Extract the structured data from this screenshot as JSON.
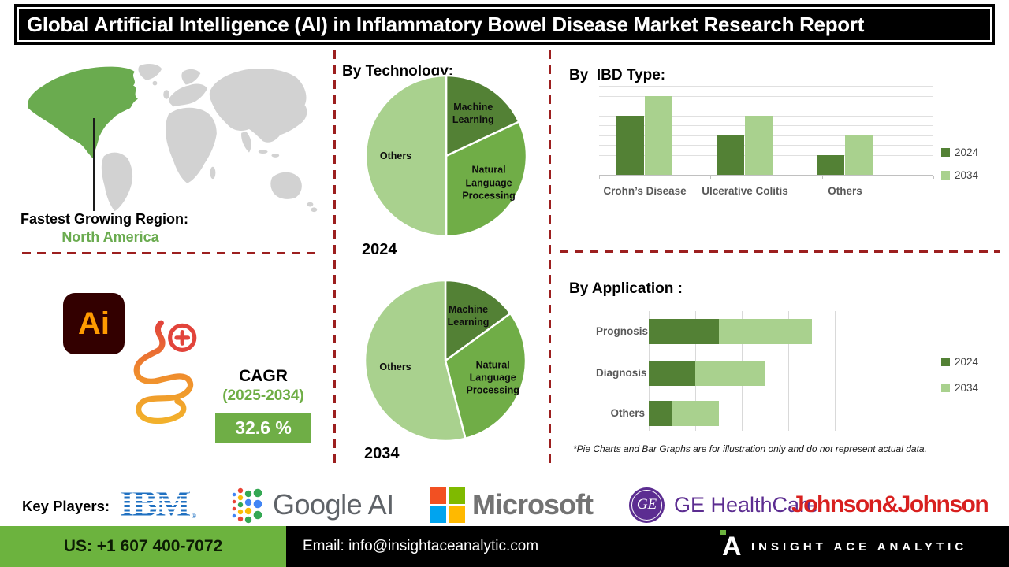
{
  "title": "Global Artificial Intelligence (AI) in Inflammatory Bowel Disease Market Research Report",
  "region": {
    "label": "Fastest Growing Region:",
    "value": "North America"
  },
  "icons": {
    "ai_badge": "Ai"
  },
  "cagr": {
    "label": "CAGR",
    "period": "(2025-2034)",
    "value": "32.6 %"
  },
  "sections": {
    "technology": {
      "heading": "By Technology:"
    },
    "ibd_type": {
      "heading": "By  IBD Type:"
    },
    "application": {
      "heading": "By Application :"
    }
  },
  "note": "*Pie Charts and Bar Graphs are for illustration only and do not represent actual data.",
  "key_players": {
    "label": "Key Players:",
    "ibm": "IBM",
    "ibm_reg": "®",
    "google": "Google AI",
    "microsoft": "Microsoft",
    "ge_monogram": "GE",
    "ge": "GE HealthCare",
    "jnj": "Johnson&Johnson"
  },
  "footer": {
    "phone": "US: +1 607 400-7072",
    "email": "Email: info@insightaceanalytic.com",
    "brand": "INSIGHT ACE ANALYTIC"
  },
  "colors": {
    "dark_green": "#538135",
    "mid_green": "#70ad47",
    "light_green": "#a9d18e",
    "map_green": "#6aab4f",
    "map_gray": "#d2d2d2",
    "divider_red": "#9c1f1f",
    "footer_green": "#6cb33e",
    "ibm_blue": "#1f70c1",
    "ge_purple": "#5c2d91",
    "jnj_red": "#d8201f"
  },
  "chart_data": [
    {
      "type": "pie",
      "title": "2024",
      "group": "By Technology",
      "labels": [
        "Machine Learning",
        "Natural Language Processing",
        "Others"
      ],
      "values": [
        18,
        32,
        50
      ],
      "colors": [
        "#538135",
        "#70ad47",
        "#a9d18e"
      ],
      "illustrative": true
    },
    {
      "type": "pie",
      "title": "2034",
      "group": "By Technology",
      "labels": [
        "Machine Learning",
        "Natural Language Processing",
        "Others"
      ],
      "values": [
        15,
        31,
        54
      ],
      "colors": [
        "#538135",
        "#70ad47",
        "#a9d18e"
      ],
      "illustrative": true
    },
    {
      "type": "bar",
      "group": "By IBD Type",
      "categories": [
        "Crohn’s Disease",
        "Ulcerative Colitis",
        "Others"
      ],
      "series": [
        {
          "name": "2024",
          "color": "#538135",
          "values": [
            6,
            4,
            2
          ]
        },
        {
          "name": "2034",
          "color": "#a9d18e",
          "values": [
            8,
            6,
            4
          ]
        }
      ],
      "ylim": [
        0,
        9
      ],
      "gridline_step": 1,
      "legend_position": "right",
      "grid": true,
      "illustrative": true
    },
    {
      "type": "bar",
      "orientation": "horizontal",
      "stacked": true,
      "group": "By Application",
      "categories": [
        "Prognosis",
        "Diagnosis",
        "Others"
      ],
      "series": [
        {
          "name": "2024",
          "color": "#538135",
          "values": [
            1.5,
            1.0,
            0.5
          ]
        },
        {
          "name": "2034",
          "color": "#a9d18e",
          "values": [
            2.0,
            1.5,
            1.0
          ]
        }
      ],
      "xlim": [
        0,
        4
      ],
      "gridline_step": 1,
      "legend_position": "right",
      "grid": true,
      "illustrative": true
    }
  ]
}
